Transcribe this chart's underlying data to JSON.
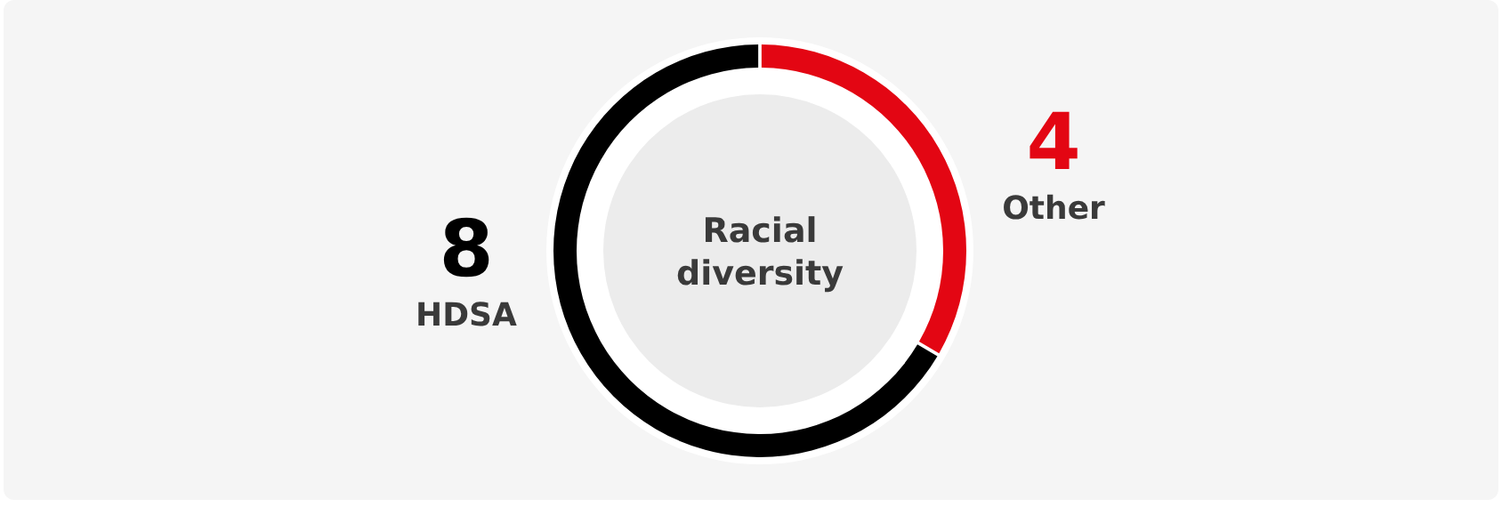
{
  "chart_data": {
    "type": "donut",
    "title": "Racial diversity",
    "categories": [
      "Other",
      "HDSA"
    ],
    "values": [
      4,
      8
    ],
    "colors": [
      "#e30613",
      "#000000"
    ],
    "data_labels": true,
    "legend": false
  }
}
